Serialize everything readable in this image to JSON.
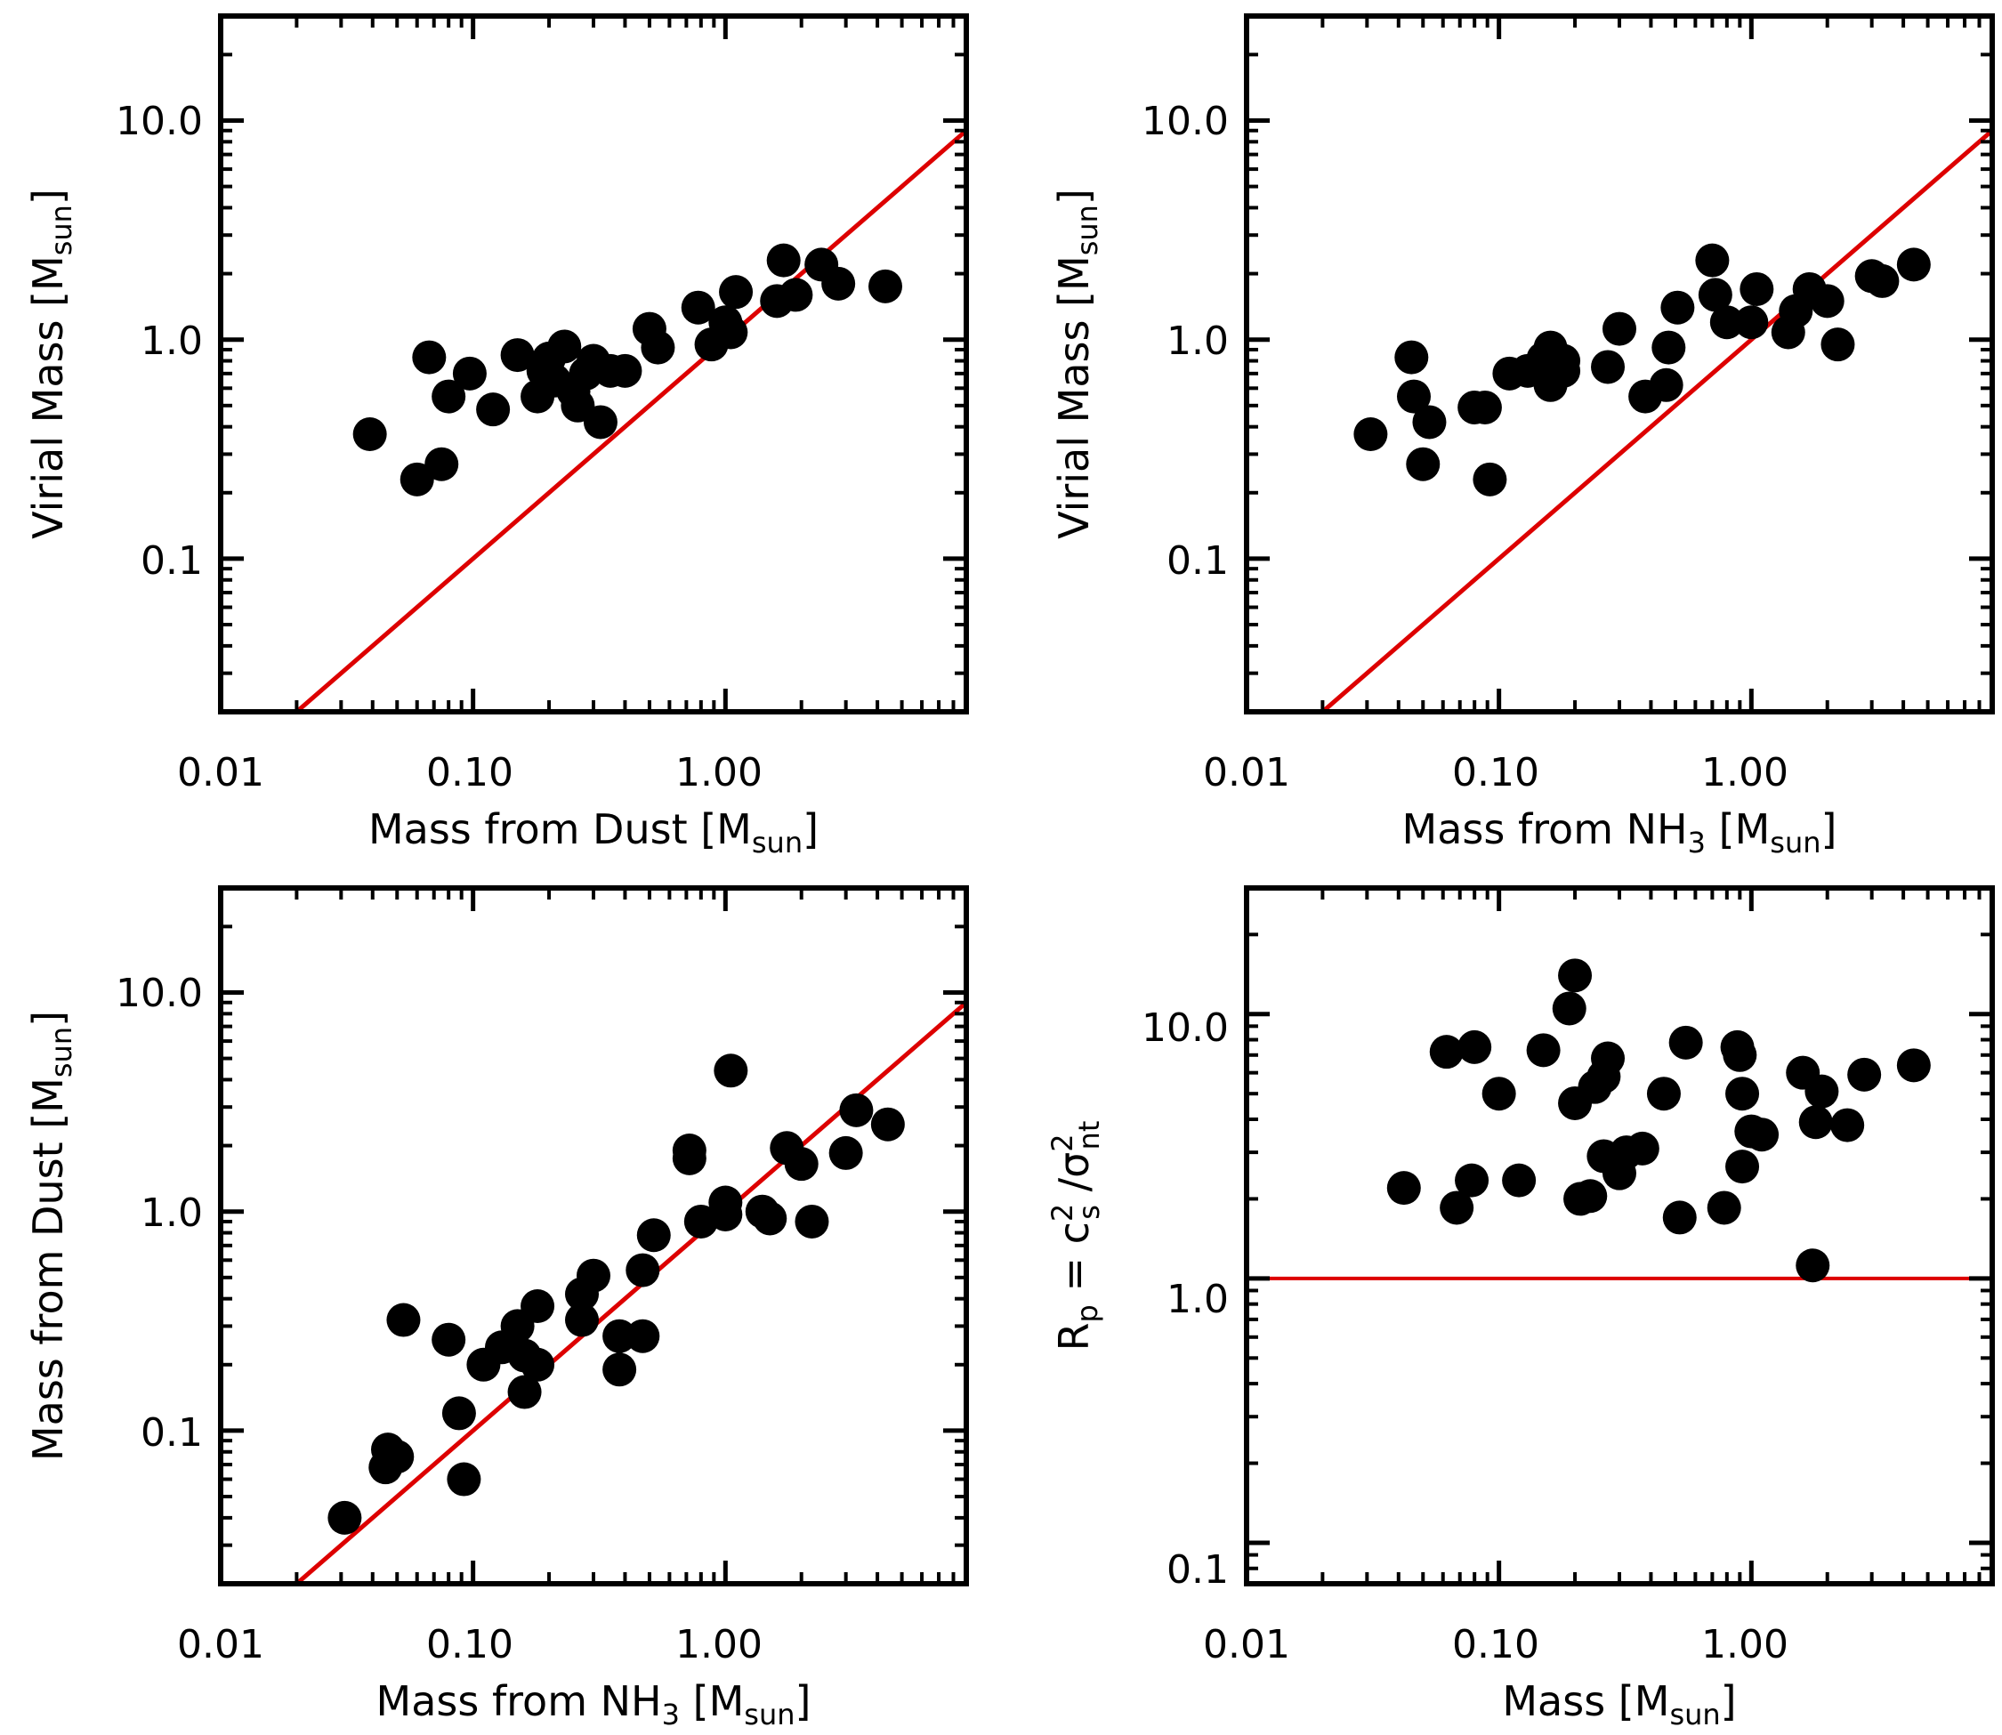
{
  "figure": {
    "colors": {
      "points": "#000000",
      "reference": "#dd0000",
      "axes": "#000000"
    }
  },
  "chart_data": [
    {
      "type": "scatter",
      "id": "p1",
      "xscale": "log",
      "yscale": "log",
      "xlim": [
        0.01,
        9.0
      ],
      "ylim": [
        0.02,
        30.0
      ],
      "xticks": [
        0.01,
        0.1,
        1.0
      ],
      "xtick_labels": [
        "0.01",
        "0.10",
        "1.00"
      ],
      "yticks": [
        0.1,
        1.0,
        10.0
      ],
      "ytick_labels": [
        "0.1",
        "1.0",
        "10.0"
      ],
      "xlabel": {
        "main": "Mass from Dust [M",
        "sub": "sun",
        "tail": "]"
      },
      "ylabel": {
        "main": "Virial Mass [M",
        "sub": "sun",
        "tail": "]"
      },
      "reference": {
        "type": "line",
        "equation": "y = x"
      },
      "points": [
        [
          0.039,
          0.37
        ],
        [
          0.06,
          0.23
        ],
        [
          0.067,
          0.83
        ],
        [
          0.075,
          0.27
        ],
        [
          0.08,
          0.55
        ],
        [
          0.097,
          0.7
        ],
        [
          0.12,
          0.48
        ],
        [
          0.15,
          0.85
        ],
        [
          0.18,
          0.55
        ],
        [
          0.19,
          0.72
        ],
        [
          0.2,
          0.82
        ],
        [
          0.21,
          0.65
        ],
        [
          0.23,
          0.93
        ],
        [
          0.25,
          0.58
        ],
        [
          0.26,
          0.5
        ],
        [
          0.28,
          0.7
        ],
        [
          0.3,
          0.8
        ],
        [
          0.32,
          0.42
        ],
        [
          0.35,
          0.72
        ],
        [
          0.4,
          0.72
        ],
        [
          0.5,
          1.12
        ],
        [
          0.54,
          0.92
        ],
        [
          0.78,
          1.4
        ],
        [
          0.88,
          0.95
        ],
        [
          1.0,
          1.2
        ],
        [
          1.05,
          1.08
        ],
        [
          1.1,
          1.65
        ],
        [
          1.6,
          1.5
        ],
        [
          1.7,
          2.3
        ],
        [
          1.9,
          1.6
        ],
        [
          2.4,
          2.2
        ],
        [
          2.8,
          1.8
        ],
        [
          4.3,
          1.75
        ]
      ]
    },
    {
      "type": "scatter",
      "id": "p2",
      "xscale": "log",
      "yscale": "log",
      "xlim": [
        0.01,
        9.0
      ],
      "ylim": [
        0.02,
        30.0
      ],
      "xticks": [
        0.01,
        0.1,
        1.0
      ],
      "xtick_labels": [
        "0.01",
        "0.10",
        "1.00"
      ],
      "yticks": [
        0.1,
        1.0,
        10.0
      ],
      "ytick_labels": [
        "0.1",
        "1.0",
        "10.0"
      ],
      "xlabel": {
        "main": "Mass from NH",
        "sub": "3",
        "mid": " [M",
        "sub2": "sun",
        "tail": "]"
      },
      "ylabel": {
        "main": "Virial Mass [M",
        "sub": "sun",
        "tail": "]"
      },
      "reference": {
        "type": "line",
        "equation": "y = x"
      },
      "points": [
        [
          0.031,
          0.37
        ],
        [
          0.045,
          0.83
        ],
        [
          0.046,
          0.55
        ],
        [
          0.05,
          0.27
        ],
        [
          0.053,
          0.42
        ],
        [
          0.08,
          0.49
        ],
        [
          0.088,
          0.49
        ],
        [
          0.092,
          0.23
        ],
        [
          0.11,
          0.7
        ],
        [
          0.13,
          0.72
        ],
        [
          0.15,
          0.82
        ],
        [
          0.16,
          0.62
        ],
        [
          0.16,
          0.92
        ],
        [
          0.18,
          0.8
        ],
        [
          0.18,
          0.72
        ],
        [
          0.27,
          0.75
        ],
        [
          0.3,
          1.12
        ],
        [
          0.38,
          0.55
        ],
        [
          0.46,
          0.62
        ],
        [
          0.47,
          0.92
        ],
        [
          0.51,
          1.4
        ],
        [
          0.7,
          2.3
        ],
        [
          0.72,
          1.6
        ],
        [
          0.8,
          1.2
        ],
        [
          1.0,
          1.2
        ],
        [
          1.05,
          1.7
        ],
        [
          1.4,
          1.08
        ],
        [
          1.5,
          1.35
        ],
        [
          1.7,
          1.7
        ],
        [
          2.0,
          1.5
        ],
        [
          2.2,
          0.95
        ],
        [
          3.0,
          1.95
        ],
        [
          3.3,
          1.85
        ],
        [
          4.4,
          2.2
        ]
      ]
    },
    {
      "type": "scatter",
      "id": "p3",
      "xscale": "log",
      "yscale": "log",
      "xlim": [
        0.01,
        9.0
      ],
      "ylim": [
        0.02,
        30.0
      ],
      "xticks": [
        0.01,
        0.1,
        1.0
      ],
      "xtick_labels": [
        "0.01",
        "0.10",
        "1.00"
      ],
      "yticks": [
        0.1,
        1.0,
        10.0
      ],
      "ytick_labels": [
        "0.1",
        "1.0",
        "10.0"
      ],
      "xlabel": {
        "main": "Mass from NH",
        "sub": "3",
        "mid": " [M",
        "sub2": "sun",
        "tail": "]"
      },
      "ylabel": {
        "main": "Mass from Dust [M",
        "sub": "sun",
        "tail": "]"
      },
      "reference": {
        "type": "line",
        "equation": "y = x"
      },
      "points": [
        [
          0.031,
          0.04
        ],
        [
          0.045,
          0.068
        ],
        [
          0.046,
          0.082
        ],
        [
          0.05,
          0.076
        ],
        [
          0.053,
          0.32
        ],
        [
          0.08,
          0.26
        ],
        [
          0.088,
          0.12
        ],
        [
          0.092,
          0.06
        ],
        [
          0.11,
          0.2
        ],
        [
          0.13,
          0.24
        ],
        [
          0.15,
          0.3
        ],
        [
          0.16,
          0.22
        ],
        [
          0.16,
          0.15
        ],
        [
          0.18,
          0.37
        ],
        [
          0.18,
          0.2
        ],
        [
          0.27,
          0.42
        ],
        [
          0.3,
          0.51
        ],
        [
          0.27,
          0.32
        ],
        [
          0.38,
          0.19
        ],
        [
          0.38,
          0.27
        ],
        [
          0.47,
          0.27
        ],
        [
          0.47,
          0.54
        ],
        [
          0.52,
          0.78
        ],
        [
          0.72,
          1.9
        ],
        [
          0.72,
          1.75
        ],
        [
          0.8,
          0.9
        ],
        [
          1.0,
          0.97
        ],
        [
          1.0,
          1.1
        ],
        [
          1.05,
          4.4
        ],
        [
          1.4,
          1.0
        ],
        [
          1.5,
          0.93
        ],
        [
          1.75,
          1.95
        ],
        [
          2.0,
          1.65
        ],
        [
          2.2,
          0.9
        ],
        [
          3.0,
          1.85
        ],
        [
          3.3,
          2.9
        ],
        [
          4.4,
          2.5
        ]
      ]
    },
    {
      "type": "scatter",
      "id": "p4",
      "xscale": "log",
      "yscale": "log",
      "xlim": [
        0.01,
        9.0
      ],
      "ylim": [
        0.07,
        30.0
      ],
      "xticks": [
        0.01,
        0.1,
        1.0
      ],
      "xtick_labels": [
        "0.01",
        "0.10",
        "1.00"
      ],
      "yticks": [
        0.1,
        1.0,
        10.0
      ],
      "ytick_labels": [
        "0.1",
        "1.0",
        "10.0"
      ],
      "xlabel": {
        "main": "Mass [M",
        "sub": "sun",
        "tail": "]"
      },
      "ylabel": {
        "main": "R",
        "sub": "p",
        "mid": " = c",
        "sup2": "2",
        "sub2": "s",
        "mid2": " /σ",
        "sup3": "2",
        "sub3": "nt"
      },
      "reference": {
        "type": "hline",
        "y": 1.0
      },
      "points": [
        [
          0.042,
          2.2
        ],
        [
          0.062,
          7.2
        ],
        [
          0.068,
          1.85
        ],
        [
          0.078,
          2.35
        ],
        [
          0.08,
          7.5
        ],
        [
          0.1,
          5.0
        ],
        [
          0.12,
          2.35
        ],
        [
          0.15,
          7.3
        ],
        [
          0.19,
          10.5
        ],
        [
          0.2,
          14.0
        ],
        [
          0.2,
          4.6
        ],
        [
          0.21,
          2.0
        ],
        [
          0.23,
          2.05
        ],
        [
          0.24,
          5.3
        ],
        [
          0.26,
          5.8
        ],
        [
          0.26,
          2.9
        ],
        [
          0.27,
          6.8
        ],
        [
          0.3,
          2.5
        ],
        [
          0.32,
          3.0
        ],
        [
          0.37,
          3.1
        ],
        [
          0.45,
          5.0
        ],
        [
          0.52,
          1.7
        ],
        [
          0.55,
          7.8
        ],
        [
          0.78,
          1.85
        ],
        [
          0.88,
          7.5
        ],
        [
          0.9,
          7.0
        ],
        [
          0.92,
          5.0
        ],
        [
          0.92,
          2.65
        ],
        [
          1.0,
          3.6
        ],
        [
          1.1,
          3.5
        ],
        [
          1.6,
          6.0
        ],
        [
          1.75,
          1.12
        ],
        [
          1.8,
          3.9
        ],
        [
          1.9,
          5.1
        ],
        [
          2.4,
          3.8
        ],
        [
          2.8,
          5.9
        ],
        [
          4.4,
          6.4
        ]
      ]
    }
  ]
}
